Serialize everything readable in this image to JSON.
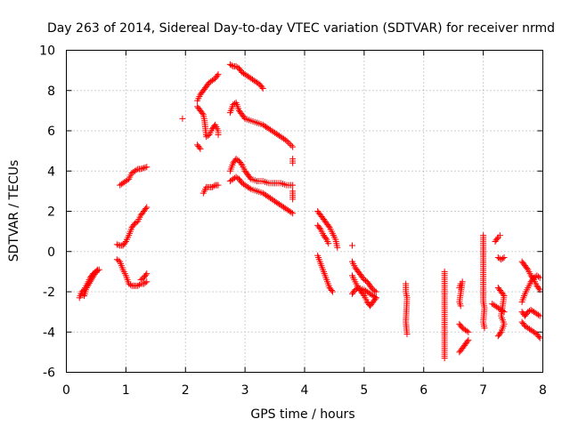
{
  "chart_data": {
    "type": "scatter",
    "title": "Day 263 of 2014, Sidereal Day-to-day VTEC variation (SDTVAR) for receiver nrmd",
    "xlabel": "GPS time / hours",
    "ylabel": "SDTVAR / TECUs",
    "xlim": [
      0,
      8
    ],
    "ylim": [
      -6,
      10
    ],
    "x_ticks": [
      0,
      1,
      2,
      3,
      4,
      5,
      6,
      7,
      8
    ],
    "y_ticks": [
      -6,
      -4,
      -2,
      0,
      2,
      4,
      6,
      8,
      10
    ],
    "x_tick_labels": [
      "0",
      "1",
      "2",
      "3",
      "4",
      "5",
      "6",
      "7",
      "8"
    ],
    "y_tick_labels": [
      "-6",
      "-4",
      "-2",
      "0",
      "2",
      "4",
      "6",
      "8",
      "10"
    ],
    "grid": true,
    "marker": "+",
    "color": "#ff0000",
    "series": [
      {
        "name": "SDTVAR",
        "segments": [
          [
            [
              0.22,
              -2.3
            ],
            [
              0.26,
              -2.0
            ],
            [
              0.3,
              -1.9
            ],
            [
              0.35,
              -1.6
            ],
            [
              0.4,
              -1.3
            ],
            [
              0.45,
              -1.1
            ],
            [
              0.5,
              -1.0
            ],
            [
              0.55,
              -0.9
            ]
          ],
          [
            [
              0.25,
              -2.1
            ],
            [
              0.3,
              -2.2
            ],
            [
              0.34,
              -1.8
            ],
            [
              0.4,
              -1.5
            ],
            [
              0.46,
              -1.2
            ],
            [
              0.52,
              -0.9
            ]
          ],
          [
            [
              0.85,
              -0.4
            ],
            [
              0.9,
              -0.5
            ],
            [
              0.95,
              -0.9
            ],
            [
              1.0,
              -1.2
            ],
            [
              1.05,
              -1.6
            ],
            [
              1.1,
              -1.7
            ],
            [
              1.15,
              -1.7
            ],
            [
              1.2,
              -1.7
            ],
            [
              1.25,
              -1.6
            ],
            [
              1.3,
              -1.6
            ],
            [
              1.35,
              -1.5
            ]
          ],
          [
            [
              1.25,
              -1.4
            ],
            [
              1.3,
              -1.3
            ],
            [
              1.35,
              -1.1
            ]
          ],
          [
            [
              0.85,
              0.35
            ],
            [
              0.9,
              0.3
            ],
            [
              0.95,
              0.3
            ],
            [
              1.0,
              0.5
            ],
            [
              1.05,
              0.8
            ],
            [
              1.1,
              1.2
            ],
            [
              1.15,
              1.4
            ],
            [
              1.2,
              1.5
            ],
            [
              1.25,
              1.8
            ],
            [
              1.3,
              2.0
            ],
            [
              1.35,
              2.2
            ]
          ],
          [
            [
              0.9,
              3.3
            ],
            [
              0.95,
              3.4
            ],
            [
              1.0,
              3.5
            ],
            [
              1.05,
              3.6
            ],
            [
              1.1,
              3.9
            ],
            [
              1.15,
              4.0
            ],
            [
              1.2,
              4.1
            ],
            [
              1.25,
              4.1
            ],
            [
              1.3,
              4.15
            ],
            [
              1.35,
              4.2
            ]
          ],
          [
            [
              1.95,
              6.6
            ]
          ],
          [
            [
              2.2,
              7.2
            ],
            [
              2.25,
              7.0
            ],
            [
              2.3,
              6.8
            ],
            [
              2.32,
              6.5
            ],
            [
              2.35,
              5.7
            ],
            [
              2.4,
              5.8
            ],
            [
              2.45,
              6.1
            ],
            [
              2.5,
              6.3
            ],
            [
              2.55,
              6.0
            ],
            [
              2.55,
              5.8
            ]
          ],
          [
            [
              2.2,
              7.5
            ],
            [
              2.25,
              7.8
            ],
            [
              2.3,
              8.0
            ],
            [
              2.35,
              8.2
            ],
            [
              2.4,
              8.4
            ],
            [
              2.45,
              8.5
            ],
            [
              2.5,
              8.6
            ],
            [
              2.55,
              8.8
            ]
          ],
          [
            [
              2.2,
              5.3
            ],
            [
              2.25,
              5.1
            ]
          ],
          [
            [
              2.3,
              2.9
            ],
            [
              2.35,
              3.2
            ],
            [
              2.4,
              3.2
            ],
            [
              2.45,
              3.2
            ],
            [
              2.5,
              3.3
            ],
            [
              2.55,
              3.3
            ]
          ],
          [
            [
              2.75,
              9.3
            ],
            [
              2.8,
              9.2
            ],
            [
              2.85,
              9.2
            ],
            [
              2.9,
              9.1
            ],
            [
              2.95,
              8.9
            ],
            [
              3.0,
              8.8
            ],
            [
              3.05,
              8.7
            ],
            [
              3.1,
              8.6
            ],
            [
              3.15,
              8.5
            ],
            [
              3.2,
              8.4
            ],
            [
              3.25,
              8.3
            ],
            [
              3.3,
              8.1
            ]
          ],
          [
            [
              2.75,
              6.9
            ],
            [
              2.8,
              7.3
            ],
            [
              2.85,
              7.4
            ],
            [
              2.9,
              7.0
            ],
            [
              2.95,
              6.8
            ],
            [
              3.0,
              6.6
            ],
            [
              3.1,
              6.5
            ],
            [
              3.2,
              6.4
            ],
            [
              3.3,
              6.3
            ],
            [
              3.4,
              6.1
            ],
            [
              3.5,
              5.9
            ],
            [
              3.6,
              5.7
            ],
            [
              3.7,
              5.5
            ],
            [
              3.8,
              5.2
            ]
          ],
          [
            [
              2.75,
              4.0
            ],
            [
              2.8,
              4.4
            ],
            [
              2.85,
              4.6
            ],
            [
              2.9,
              4.5
            ],
            [
              2.95,
              4.3
            ],
            [
              3.0,
              4.0
            ],
            [
              3.05,
              3.8
            ],
            [
              3.1,
              3.6
            ],
            [
              3.2,
              3.5
            ],
            [
              3.3,
              3.5
            ],
            [
              3.4,
              3.4
            ],
            [
              3.5,
              3.4
            ],
            [
              3.6,
              3.4
            ],
            [
              3.7,
              3.3
            ],
            [
              3.8,
              3.3
            ]
          ],
          [
            [
              2.75,
              3.5
            ],
            [
              2.8,
              3.6
            ],
            [
              2.85,
              3.7
            ],
            [
              2.9,
              3.6
            ],
            [
              2.95,
              3.4
            ],
            [
              3.0,
              3.3
            ],
            [
              3.1,
              3.1
            ],
            [
              3.2,
              3.0
            ],
            [
              3.3,
              2.9
            ],
            [
              3.4,
              2.7
            ],
            [
              3.5,
              2.5
            ],
            [
              3.6,
              2.3
            ],
            [
              3.7,
              2.1
            ],
            [
              3.8,
              1.9
            ]
          ],
          [
            [
              3.8,
              4.6
            ],
            [
              3.8,
              4.4
            ]
          ],
          [
            [
              3.8,
              3.0
            ],
            [
              3.8,
              2.6
            ]
          ],
          [
            [
              4.22,
              2.0
            ],
            [
              4.27,
              1.8
            ],
            [
              4.32,
              1.6
            ],
            [
              4.37,
              1.4
            ],
            [
              4.42,
              1.2
            ],
            [
              4.47,
              0.9
            ],
            [
              4.52,
              0.6
            ],
            [
              4.55,
              0.2
            ]
          ],
          [
            [
              4.22,
              1.3
            ],
            [
              4.27,
              1.1
            ],
            [
              4.32,
              0.8
            ],
            [
              4.37,
              0.6
            ],
            [
              4.4,
              0.4
            ]
          ],
          [
            [
              4.22,
              -0.2
            ],
            [
              4.27,
              -0.6
            ],
            [
              4.32,
              -1.0
            ],
            [
              4.37,
              -1.4
            ],
            [
              4.42,
              -1.8
            ],
            [
              4.47,
              -2.0
            ]
          ],
          [
            [
              4.8,
              -0.5
            ],
            [
              4.85,
              -0.8
            ],
            [
              4.9,
              -1.0
            ],
            [
              4.95,
              -1.2
            ],
            [
              5.0,
              -1.4
            ],
            [
              5.05,
              -1.5
            ],
            [
              5.1,
              -1.7
            ],
            [
              5.15,
              -1.9
            ],
            [
              5.2,
              -2.0
            ]
          ],
          [
            [
              4.8,
              -1.2
            ],
            [
              4.85,
              -1.5
            ],
            [
              4.9,
              -1.8
            ],
            [
              4.95,
              -2.0
            ],
            [
              5.0,
              -2.2
            ],
            [
              5.05,
              -2.5
            ],
            [
              5.1,
              -2.7
            ],
            [
              5.15,
              -2.5
            ],
            [
              5.2,
              -2.3
            ]
          ],
          [
            [
              4.8,
              -2.1
            ],
            [
              4.85,
              -1.9
            ],
            [
              4.9,
              -1.8
            ],
            [
              5.0,
              -1.9
            ],
            [
              5.1,
              -2.1
            ],
            [
              5.2,
              -2.3
            ]
          ],
          [
            [
              4.8,
              0.3
            ]
          ],
          [
            [
              5.7,
              -1.6
            ],
            [
              5.7,
              -2.0
            ],
            [
              5.72,
              -2.3
            ],
            [
              5.7,
              -3.5
            ],
            [
              5.72,
              -4.1
            ]
          ],
          [
            [
              6.35,
              -1.0
            ],
            [
              6.35,
              -4.1
            ],
            [
              6.35,
              -5.3
            ]
          ],
          [
            [
              6.6,
              -1.8
            ],
            [
              6.62,
              -1.6
            ],
            [
              6.65,
              -1.5
            ],
            [
              6.6,
              -2.5
            ],
            [
              6.62,
              -2.7
            ]
          ],
          [
            [
              6.6,
              -3.6
            ],
            [
              6.65,
              -3.8
            ],
            [
              6.7,
              -3.9
            ],
            [
              6.75,
              -4.0
            ]
          ],
          [
            [
              6.6,
              -5.0
            ],
            [
              6.65,
              -4.8
            ],
            [
              6.7,
              -4.6
            ],
            [
              6.75,
              -4.4
            ]
          ],
          [
            [
              7.0,
              0.8
            ],
            [
              7.0,
              -2.5
            ],
            [
              7.02,
              -2.8
            ],
            [
              7.0,
              -3.5
            ],
            [
              7.02,
              -3.8
            ]
          ],
          [
            [
              7.15,
              -2.6
            ],
            [
              7.2,
              -2.7
            ],
            [
              7.25,
              -2.8
            ],
            [
              7.3,
              -2.9
            ],
            [
              7.35,
              -3.0
            ]
          ],
          [
            [
              7.2,
              0.5
            ],
            [
              7.25,
              0.7
            ],
            [
              7.28,
              0.8
            ]
          ],
          [
            [
              7.25,
              -0.3
            ],
            [
              7.3,
              -0.4
            ],
            [
              7.35,
              -0.3
            ]
          ],
          [
            [
              7.25,
              -1.8
            ],
            [
              7.3,
              -2.0
            ],
            [
              7.35,
              -2.2
            ],
            [
              7.3,
              -3.2
            ],
            [
              7.35,
              -3.6
            ],
            [
              7.3,
              -4.0
            ],
            [
              7.25,
              -4.2
            ]
          ],
          [
            [
              7.65,
              -0.5
            ],
            [
              7.7,
              -0.7
            ],
            [
              7.75,
              -0.9
            ],
            [
              7.8,
              -1.2
            ],
            [
              7.85,
              -1.4
            ],
            [
              7.9,
              -1.7
            ],
            [
              7.95,
              -1.9
            ]
          ],
          [
            [
              7.65,
              -2.5
            ],
            [
              7.7,
              -2.1
            ],
            [
              7.75,
              -1.8
            ],
            [
              7.8,
              -1.5
            ],
            [
              7.85,
              -1.3
            ],
            [
              7.9,
              -1.2
            ],
            [
              7.95,
              -1.3
            ]
          ],
          [
            [
              7.65,
              -3.0
            ],
            [
              7.7,
              -3.2
            ],
            [
              7.75,
              -3.0
            ],
            [
              7.8,
              -2.9
            ],
            [
              7.85,
              -3.0
            ],
            [
              7.9,
              -3.1
            ],
            [
              7.95,
              -3.2
            ]
          ],
          [
            [
              7.65,
              -3.5
            ],
            [
              7.7,
              -3.7
            ],
            [
              7.75,
              -3.8
            ],
            [
              7.8,
              -3.9
            ],
            [
              7.85,
              -4.0
            ],
            [
              7.9,
              -4.1
            ],
            [
              7.95,
              -4.3
            ]
          ]
        ]
      }
    ]
  }
}
